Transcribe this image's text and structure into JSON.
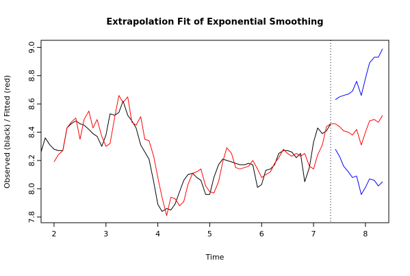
{
  "chart_data": {
    "type": "line",
    "title": "Extrapolation Fit of Exponential Smoothing",
    "xlabel": "Time",
    "ylabel": "Observed (black) / Fitted (red)",
    "xlim": [
      1.75,
      8.45
    ],
    "ylim": [
      7.76,
      9.05
    ],
    "x_ticks": [
      2,
      3,
      4,
      5,
      6,
      7,
      8
    ],
    "y_ticks": [
      7.8,
      8.0,
      8.2,
      8.4,
      8.6,
      8.8,
      9.0
    ],
    "x_tick_labels": [
      "2",
      "3",
      "4",
      "5",
      "6",
      "7",
      "8"
    ],
    "y_tick_labels": [
      "7.8",
      "8.0",
      "8.2",
      "8.4",
      "8.6",
      "8.8",
      "9.0"
    ],
    "grid": false,
    "forecast_origin": 7.33,
    "series": [
      {
        "color": "#000000",
        "x": [
          1.75,
          1.83,
          1.92,
          2.0,
          2.08,
          2.17,
          2.25,
          2.33,
          2.42,
          2.5,
          2.58,
          2.67,
          2.75,
          2.83,
          2.92,
          3.0,
          3.08,
          3.17,
          3.25,
          3.33,
          3.42,
          3.5,
          3.58,
          3.67,
          3.75,
          3.83,
          3.92,
          4.0,
          4.08,
          4.17,
          4.25,
          4.33,
          4.42,
          4.5,
          4.58,
          4.67,
          4.75,
          4.83,
          4.92,
          5.0,
          5.08,
          5.17,
          5.25,
          5.33,
          5.42,
          5.5,
          5.58,
          5.67,
          5.75,
          5.83,
          5.92,
          6.0,
          6.08,
          6.17,
          6.25,
          6.33,
          6.42,
          6.5,
          6.58,
          6.67,
          6.75,
          6.83,
          6.92,
          7.0,
          7.08,
          7.17,
          7.25,
          7.33
        ],
        "values": [
          8.26,
          8.36,
          8.31,
          8.28,
          8.27,
          8.27,
          8.43,
          8.46,
          8.48,
          8.46,
          8.45,
          8.42,
          8.39,
          8.37,
          8.3,
          8.38,
          8.53,
          8.52,
          8.54,
          8.62,
          8.52,
          8.48,
          8.43,
          8.31,
          8.26,
          8.21,
          8.05,
          7.89,
          7.84,
          7.86,
          7.85,
          7.89,
          7.98,
          8.06,
          8.1,
          8.11,
          8.08,
          8.06,
          7.96,
          7.96,
          8.08,
          8.17,
          8.21,
          8.2,
          8.19,
          8.18,
          8.17,
          8.17,
          8.18,
          8.17,
          8.01,
          8.03,
          8.13,
          8.14,
          8.17,
          8.25,
          8.27,
          8.27,
          8.26,
          8.22,
          8.25,
          8.05,
          8.15,
          8.33,
          8.43,
          8.39,
          8.41,
          8.46
        ]
      },
      {
        "color": "#ff0000",
        "x": [
          2.0,
          2.08,
          2.17,
          2.25,
          2.33,
          2.42,
          2.5,
          2.58,
          2.67,
          2.75,
          2.83,
          2.92,
          3.0,
          3.08,
          3.17,
          3.25,
          3.33,
          3.42,
          3.5,
          3.58,
          3.67,
          3.75,
          3.83,
          3.92,
          4.0,
          4.08,
          4.17,
          4.25,
          4.33,
          4.42,
          4.5,
          4.58,
          4.67,
          4.75,
          4.83,
          4.92,
          5.0,
          5.08,
          5.17,
          5.25,
          5.33,
          5.42,
          5.5,
          5.58,
          5.67,
          5.75,
          5.83,
          5.92,
          6.0,
          6.08,
          6.17,
          6.25,
          6.33,
          6.42,
          6.5,
          6.58,
          6.67,
          6.75,
          6.83,
          6.92,
          7.0,
          7.08,
          7.17,
          7.25,
          7.33
        ],
        "values": [
          8.19,
          8.24,
          8.27,
          8.43,
          8.47,
          8.5,
          8.35,
          8.49,
          8.55,
          8.43,
          8.49,
          8.37,
          8.3,
          8.32,
          8.51,
          8.66,
          8.61,
          8.65,
          8.47,
          8.45,
          8.51,
          8.35,
          8.34,
          8.23,
          8.08,
          7.94,
          7.81,
          7.94,
          7.93,
          7.88,
          7.91,
          8.03,
          8.11,
          8.12,
          8.14,
          8.02,
          7.98,
          7.97,
          8.05,
          8.19,
          8.29,
          8.25,
          8.15,
          8.14,
          8.15,
          8.16,
          8.2,
          8.14,
          8.08,
          8.1,
          8.12,
          8.18,
          8.22,
          8.28,
          8.25,
          8.23,
          8.25,
          8.23,
          8.25,
          8.16,
          8.14,
          8.24,
          8.31,
          8.44,
          8.46
        ]
      },
      {
        "color": "#ff0000",
        "x": [
          7.33,
          7.42,
          7.5,
          7.58,
          7.67,
          7.75,
          7.83,
          7.92,
          8.0,
          8.08,
          8.17,
          8.25,
          8.33
        ],
        "values": [
          8.46,
          8.46,
          8.44,
          8.41,
          8.4,
          8.38,
          8.42,
          8.31,
          8.4,
          8.48,
          8.49,
          8.47,
          8.52
        ]
      },
      {
        "color": "#0000ff",
        "x": [
          7.42,
          7.5,
          7.58,
          7.67,
          7.75,
          7.83,
          7.92,
          8.0,
          8.08,
          8.17,
          8.25,
          8.33
        ],
        "values": [
          8.63,
          8.65,
          8.66,
          8.67,
          8.69,
          8.76,
          8.66,
          8.78,
          8.89,
          8.93,
          8.93,
          8.99
        ]
      },
      {
        "color": "#0000ff",
        "x": [
          7.42,
          7.5,
          7.58,
          7.67,
          7.75,
          7.83,
          7.92,
          8.0,
          8.08,
          8.17,
          8.25,
          8.33
        ],
        "values": [
          8.28,
          8.23,
          8.16,
          8.12,
          8.08,
          8.09,
          7.96,
          8.01,
          8.07,
          8.06,
          8.02,
          8.05
        ]
      }
    ]
  }
}
